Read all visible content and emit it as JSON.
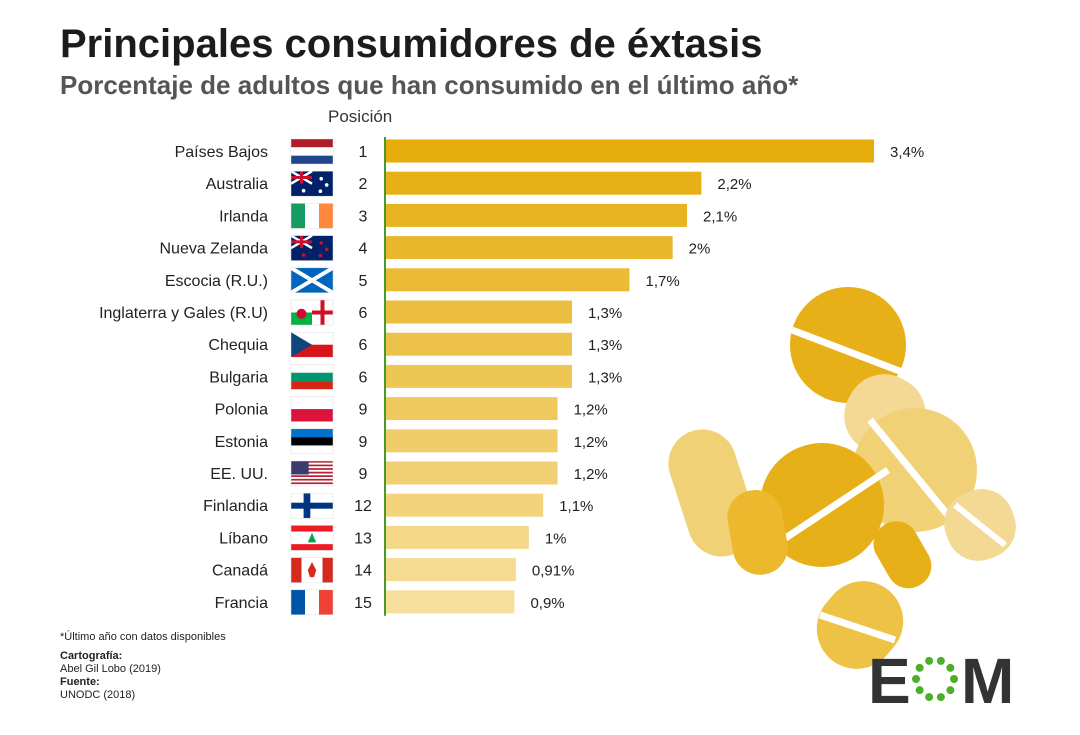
{
  "title": "Principales consumidores de éxtasis",
  "subtitle": "Porcentaje de adultos que han consumido en el último año*",
  "position_header": "Posición",
  "footnote": "*Último año con datos disponibles",
  "credits": {
    "cartography_label": "Cartografía:",
    "cartography_value": "Abel Gil Lobo (2019)",
    "source_label": "Fuente:",
    "source_value": "UNODC (2018)"
  },
  "logo": {
    "text_left": "E",
    "text_right": "M",
    "color": "#333333",
    "dot_color": "#4caf2a"
  },
  "colors": {
    "bar_dark": "#e6ac0c",
    "bar_light": "#f6df9c",
    "axis": "#4a9a2a"
  },
  "chart_data": {
    "type": "bar",
    "orientation": "horizontal",
    "categories": [
      "Países Bajos",
      "Australia",
      "Irlanda",
      "Nueva Zelanda",
      "Escocia (R.U.)",
      "Inglaterra y Gales (R.U)",
      "Chequia",
      "Bulgaria",
      "Polonia",
      "Estonia",
      "EE. UU.",
      "Finlandia",
      "Líbano",
      "Canadá",
      "Francia"
    ],
    "positions": [
      "1",
      "2",
      "3",
      "4",
      "5",
      "6",
      "6",
      "6",
      "9",
      "9",
      "9",
      "12",
      "13",
      "14",
      "15"
    ],
    "values": [
      3.4,
      2.2,
      2.1,
      2.0,
      1.7,
      1.3,
      1.3,
      1.3,
      1.2,
      1.2,
      1.2,
      1.1,
      1.0,
      0.91,
      0.9
    ],
    "value_labels": [
      "3,4%",
      "2,2%",
      "2,1%",
      "2%",
      "1,7%",
      "1,3%",
      "1,3%",
      "1,3%",
      "1,2%",
      "1,2%",
      "1,2%",
      "1,1%",
      "1%",
      "0,91%",
      "0,9%"
    ],
    "flags": [
      "flag-netherlands",
      "flag-australia",
      "flag-ireland",
      "flag-new-zealand",
      "flag-scotland",
      "flag-wales",
      "flag-czechia",
      "flag-bulgaria",
      "flag-poland",
      "flag-estonia",
      "flag-usa",
      "flag-finland",
      "flag-lebanon",
      "flag-canada",
      "flag-france"
    ],
    "xlim": [
      0,
      3.4
    ],
    "grid": false,
    "legend": "none"
  }
}
